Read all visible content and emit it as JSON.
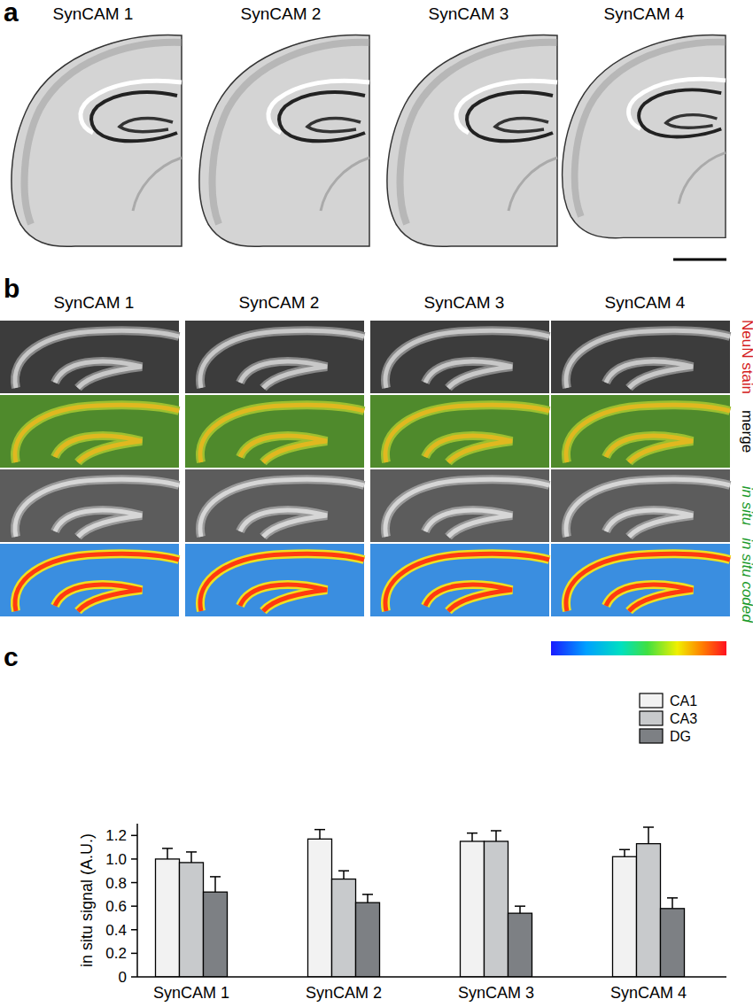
{
  "panels": {
    "a": {
      "label": "a",
      "titles": [
        "SynCAM 1",
        "SynCAM 2",
        "SynCAM 3",
        "SynCAM 4"
      ]
    },
    "b": {
      "label": "b",
      "titles": [
        "SynCAM 1",
        "SynCAM 2",
        "SynCAM 3",
        "SynCAM 4"
      ],
      "rows": [
        "NeuN stain",
        "merge",
        "in situ",
        "in situ coded"
      ]
    },
    "c": {
      "label": "c"
    }
  },
  "chart_data": {
    "type": "bar",
    "categories": [
      "SynCAM 1",
      "SynCAM 2",
      "SynCAM 3",
      "SynCAM 4"
    ],
    "ylabel": "in situ signal (A.U.)",
    "series": [
      {
        "name": "CA1",
        "color": "#f2f2f2",
        "values": [
          1.0,
          1.17,
          1.15,
          1.02
        ],
        "errors": [
          0.09,
          0.08,
          0.07,
          0.06
        ]
      },
      {
        "name": "CA3",
        "color": "#c8cacc",
        "values": [
          0.97,
          0.83,
          1.15,
          1.13
        ],
        "errors": [
          0.09,
          0.07,
          0.09,
          0.14
        ]
      },
      {
        "name": "DG",
        "color": "#7d8084",
        "values": [
          0.72,
          0.63,
          0.54,
          0.58
        ],
        "errors": [
          0.13,
          0.07,
          0.06,
          0.09
        ]
      }
    ],
    "ylim": [
      0,
      1.3
    ],
    "yticks": [
      0,
      0.2,
      0.4,
      0.6,
      0.8,
      {
        "value": 1,
        "label": "1.0"
      },
      1.2
    ],
    "legend": "top-right"
  }
}
